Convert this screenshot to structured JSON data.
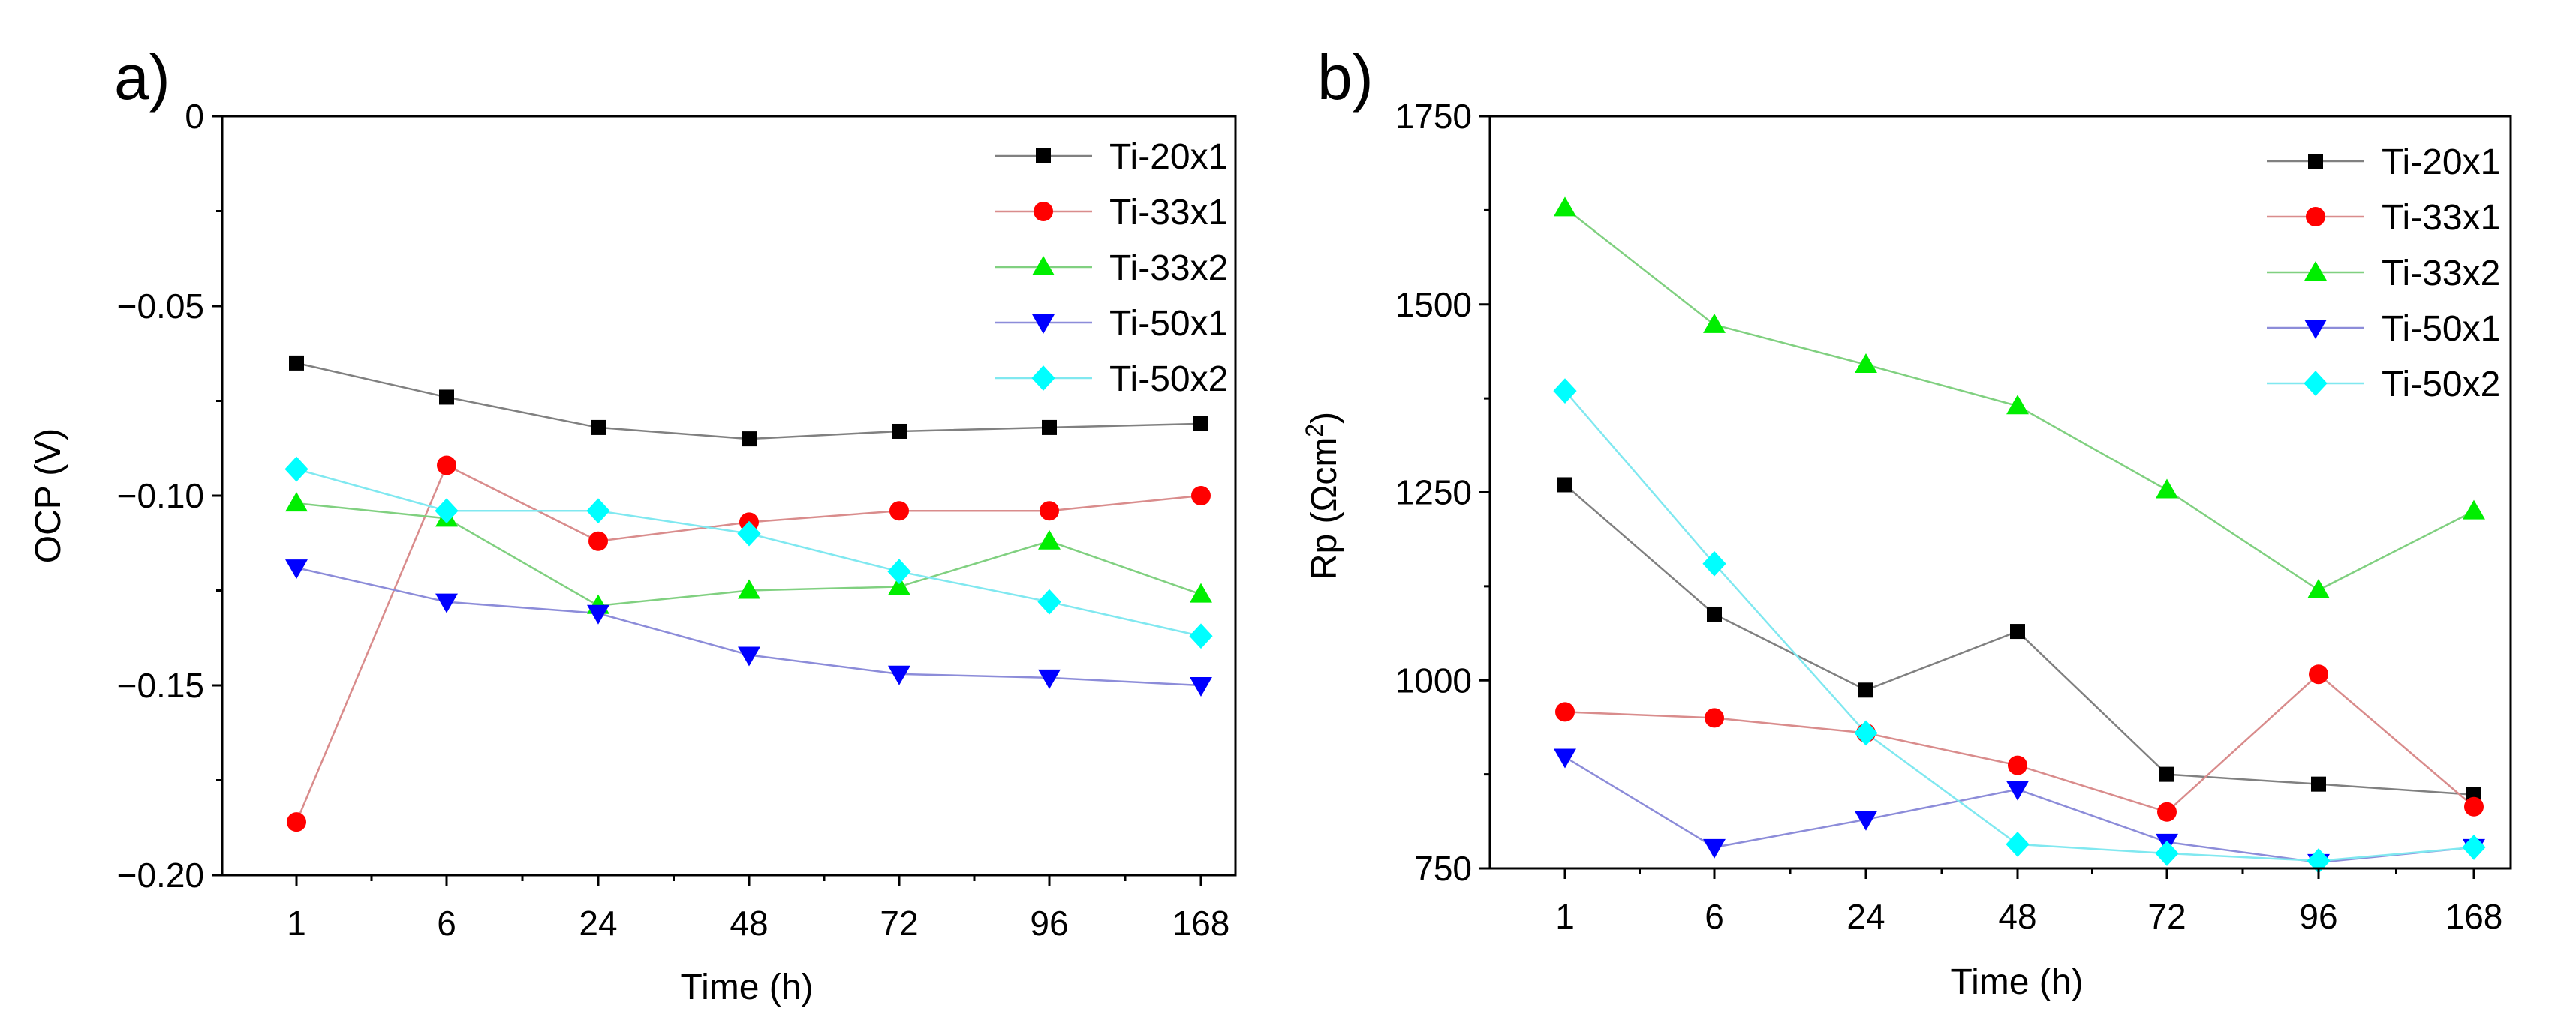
{
  "chart_data": [
    {
      "type": "line",
      "panel_label": "a)",
      "title": "",
      "xlabel": "Time (h)",
      "ylabel": "OCP (V)",
      "categories": [
        "1",
        "6",
        "24",
        "48",
        "72",
        "96",
        "168"
      ],
      "ylim": [
        -0.2,
        0
      ],
      "yticks": [
        0,
        -0.05,
        -0.1,
        -0.15,
        -0.2
      ],
      "ytick_labels": [
        "0",
        "−0.05",
        "−0.10",
        "−0.15",
        "−0.20"
      ],
      "grid": false,
      "legend_position": "top-right",
      "series": [
        {
          "name": "Ti-20x1",
          "marker": "square",
          "color": "#000000",
          "line_color": "#808080",
          "marker_size": "small",
          "values": [
            -0.065,
            -0.074,
            -0.082,
            -0.085,
            -0.083,
            -0.082,
            -0.081
          ]
        },
        {
          "name": "Ti-33x1",
          "marker": "circle",
          "color": "#ff0000",
          "line_color": "#d98c8c",
          "marker_size": "large",
          "values": [
            -0.186,
            -0.092,
            -0.112,
            -0.107,
            -0.104,
            -0.104,
            -0.1
          ]
        },
        {
          "name": "Ti-33x2",
          "marker": "triangle-up",
          "color": "#00ee00",
          "line_color": "#80d080",
          "marker_size": "large",
          "values": [
            -0.102,
            -0.106,
            -0.129,
            -0.125,
            -0.124,
            -0.112,
            -0.126
          ]
        },
        {
          "name": "Ti-50x1",
          "marker": "triangle-down",
          "color": "#0000ff",
          "line_color": "#8c8cd9",
          "marker_size": "large",
          "values": [
            -0.119,
            -0.128,
            -0.131,
            -0.142,
            -0.147,
            -0.148,
            -0.15
          ]
        },
        {
          "name": "Ti-50x2",
          "marker": "diamond",
          "color": "#00ffff",
          "line_color": "#80e8f0",
          "marker_size": "large",
          "values": [
            -0.093,
            -0.104,
            -0.104,
            -0.11,
            -0.12,
            -0.128,
            -0.137
          ]
        }
      ]
    },
    {
      "type": "line",
      "panel_label": "b)",
      "title": "",
      "xlabel": "Time (h)",
      "ylabel": "Rp (Ωcm",
      "ylabel_superscript": "2",
      "ylabel_suffix": ")",
      "categories": [
        "1",
        "6",
        "24",
        "48",
        "72",
        "96",
        "168"
      ],
      "ylim": [
        750,
        1750
      ],
      "yticks": [
        1750,
        1500,
        1250,
        1000,
        750
      ],
      "ytick_labels": [
        "1750",
        "1500",
        "1250",
        "1000",
        "750"
      ],
      "grid": false,
      "legend_position": "top-right",
      "series": [
        {
          "name": "Ti-20x1",
          "marker": "square",
          "color": "#000000",
          "line_color": "#808080",
          "marker_size": "small",
          "values": [
            1260,
            1088,
            987,
            1065,
            875,
            862,
            848
          ]
        },
        {
          "name": "Ti-33x1",
          "marker": "circle",
          "color": "#ff0000",
          "line_color": "#d98c8c",
          "marker_size": "large",
          "values": [
            958,
            950,
            930,
            887,
            825,
            1008,
            832
          ]
        },
        {
          "name": "Ti-33x2",
          "marker": "triangle-up",
          "color": "#00ee00",
          "line_color": "#80d080",
          "marker_size": "large",
          "values": [
            1628,
            1473,
            1420,
            1365,
            1253,
            1120,
            1225
          ]
        },
        {
          "name": "Ti-50x1",
          "marker": "triangle-down",
          "color": "#0000ff",
          "line_color": "#8c8cd9",
          "marker_size": "large",
          "values": [
            898,
            778,
            815,
            855,
            785,
            758,
            778
          ]
        },
        {
          "name": "Ti-50x2",
          "marker": "diamond",
          "color": "#00ffff",
          "line_color": "#80e8f0",
          "marker_size": "large",
          "values": [
            1385,
            1155,
            930,
            782,
            770,
            760,
            778
          ]
        }
      ]
    }
  ]
}
